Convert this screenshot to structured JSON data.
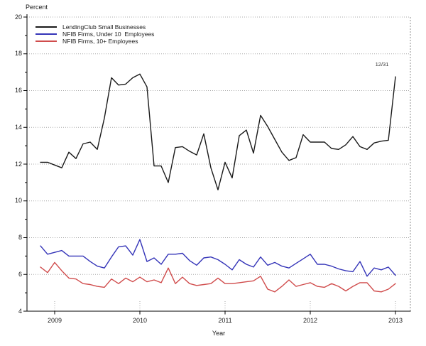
{
  "chart_data": {
    "type": "line",
    "title": "",
    "ylabel": "Percent",
    "xlabel": "Year",
    "ylim": [
      4,
      20
    ],
    "xlim": [
      2008.675,
      2013.175
    ],
    "y_ticks": [
      4,
      6,
      8,
      10,
      12,
      14,
      16,
      18,
      20
    ],
    "y_minor_ticks": [
      5,
      7,
      9,
      11,
      13,
      15,
      17,
      19
    ],
    "x_ticks": [
      2009,
      2010,
      2011,
      2012,
      2013
    ],
    "grid": "horizontal dotted gridlines at even percent values, dotted stubs at year ticks, dotted right border",
    "legend_position": "top-left",
    "x_start": 2008.8333,
    "x_end": 2013.0,
    "annotation": {
      "text": "12/31",
      "x": 2013.0,
      "y": 16.75
    },
    "series": [
      {
        "name": "LendingClub Small Businesses",
        "color": "#1a1a1a",
        "values": [
          12.1,
          12.1,
          11.95,
          11.8,
          12.65,
          12.3,
          13.1,
          13.2,
          12.8,
          14.5,
          16.7,
          16.3,
          16.35,
          16.7,
          16.9,
          16.2,
          11.9,
          11.9,
          11.0,
          12.9,
          12.95,
          12.7,
          12.5,
          13.65,
          11.8,
          10.6,
          12.1,
          11.25,
          13.55,
          13.85,
          12.6,
          14.65,
          14.05,
          13.35,
          12.65,
          12.2,
          12.35,
          13.6,
          13.2,
          13.2,
          13.2,
          12.85,
          12.8,
          13.05,
          13.5,
          12.95,
          12.8,
          13.15,
          13.25,
          13.3,
          16.75
        ]
      },
      {
        "name": "NFIB Firms, Under 10  Employees",
        "color": "#3434b8",
        "values": [
          7.55,
          7.1,
          7.2,
          7.3,
          7.0,
          7.0,
          7.0,
          6.7,
          6.45,
          6.35,
          6.95,
          7.5,
          7.55,
          7.05,
          7.9,
          6.7,
          6.9,
          6.55,
          7.1,
          7.1,
          7.15,
          6.75,
          6.5,
          6.9,
          6.95,
          6.8,
          6.55,
          6.25,
          6.8,
          6.55,
          6.4,
          6.95,
          6.5,
          6.65,
          6.45,
          6.35,
          6.6,
          6.85,
          7.1,
          6.55,
          6.55,
          6.45,
          6.3,
          6.2,
          6.15,
          6.7,
          5.9,
          6.35,
          6.25,
          6.4,
          5.95
        ]
      },
      {
        "name": "NFIB Firms, 10+ Employees",
        "color": "#d04c4c",
        "values": [
          6.4,
          6.1,
          6.65,
          6.2,
          5.8,
          5.75,
          5.5,
          5.45,
          5.35,
          5.3,
          5.75,
          5.5,
          5.8,
          5.6,
          5.85,
          5.6,
          5.7,
          5.55,
          6.35,
          5.5,
          5.85,
          5.5,
          5.4,
          5.45,
          5.5,
          5.8,
          5.5,
          5.5,
          5.55,
          5.6,
          5.65,
          5.9,
          5.2,
          5.05,
          5.35,
          5.7,
          5.35,
          5.45,
          5.55,
          5.35,
          5.3,
          5.5,
          5.35,
          5.1,
          5.35,
          5.55,
          5.55,
          5.1,
          5.05,
          5.2,
          5.5
        ]
      }
    ]
  }
}
